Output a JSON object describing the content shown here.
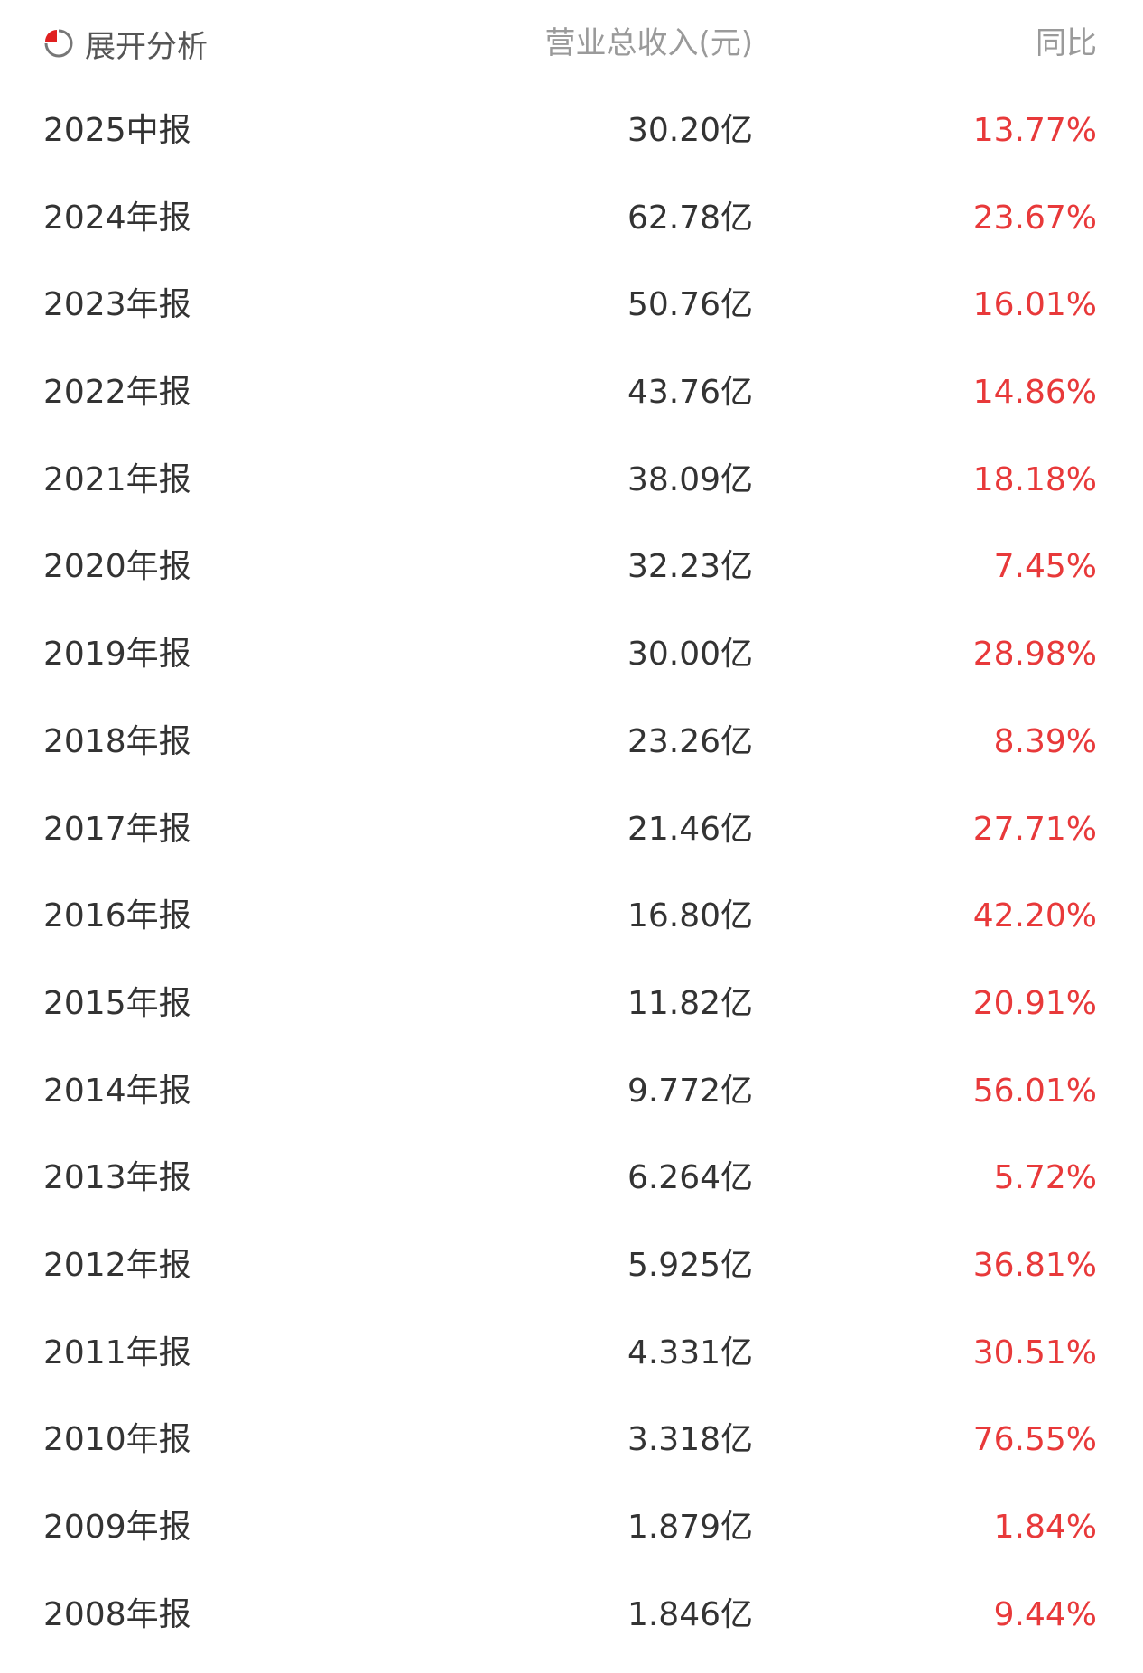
{
  "header": {
    "expand_label": "展开分析",
    "icon": "pie-chart-icon",
    "revenue_col": "营业总收入(元)",
    "yoy_col": "同比"
  },
  "colors": {
    "text": "#333333",
    "positive": "#e8393a",
    "header": "#9a9a9a",
    "icon_accent": "#e02020"
  },
  "rows": [
    {
      "period": "2025中报",
      "revenue": "30.20亿",
      "yoy": "13.77%"
    },
    {
      "period": "2024年报",
      "revenue": "62.78亿",
      "yoy": "23.67%"
    },
    {
      "period": "2023年报",
      "revenue": "50.76亿",
      "yoy": "16.01%"
    },
    {
      "period": "2022年报",
      "revenue": "43.76亿",
      "yoy": "14.86%"
    },
    {
      "period": "2021年报",
      "revenue": "38.09亿",
      "yoy": "18.18%"
    },
    {
      "period": "2020年报",
      "revenue": "32.23亿",
      "yoy": "7.45%"
    },
    {
      "period": "2019年报",
      "revenue": "30.00亿",
      "yoy": "28.98%"
    },
    {
      "period": "2018年报",
      "revenue": "23.26亿",
      "yoy": "8.39%"
    },
    {
      "period": "2017年报",
      "revenue": "21.46亿",
      "yoy": "27.71%"
    },
    {
      "period": "2016年报",
      "revenue": "16.80亿",
      "yoy": "42.20%"
    },
    {
      "period": "2015年报",
      "revenue": "11.82亿",
      "yoy": "20.91%"
    },
    {
      "period": "2014年报",
      "revenue": "9.772亿",
      "yoy": "56.01%"
    },
    {
      "period": "2013年报",
      "revenue": "6.264亿",
      "yoy": "5.72%"
    },
    {
      "period": "2012年报",
      "revenue": "5.925亿",
      "yoy": "36.81%"
    },
    {
      "period": "2011年报",
      "revenue": "4.331亿",
      "yoy": "30.51%"
    },
    {
      "period": "2010年报",
      "revenue": "3.318亿",
      "yoy": "76.55%"
    },
    {
      "period": "2009年报",
      "revenue": "1.879亿",
      "yoy": "1.84%"
    },
    {
      "period": "2008年报",
      "revenue": "1.846亿",
      "yoy": "9.44%"
    }
  ]
}
